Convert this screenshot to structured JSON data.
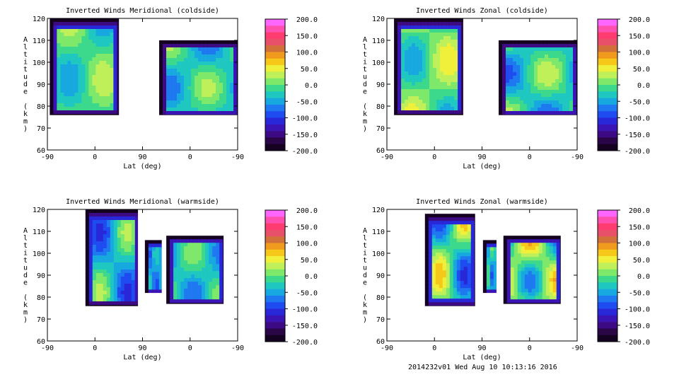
{
  "footer": "2014232v01 Wed Aug 10 10:13:16 2016",
  "colorbar": {
    "labels": [
      "200.0",
      "150.0",
      "100.0",
      "50.0",
      "0.0",
      "-50.0",
      "-100.0",
      "-150.0",
      "-200.0"
    ],
    "colors": [
      "#ff66ff",
      "#ff4fb0",
      "#ff3c70",
      "#e8506a",
      "#d2703a",
      "#f09a1e",
      "#f5c81a",
      "#f0f03a",
      "#bff05a",
      "#7ee86a",
      "#3cd88c",
      "#1ec8c0",
      "#18a8e0",
      "#1e78f0",
      "#1e4cf0",
      "#2828d8",
      "#3a14b4",
      "#3c0a82",
      "#2a0646",
      "#140220"
    ],
    "range": [
      -200,
      200
    ]
  },
  "chart_data": [
    {
      "type": "heatmap",
      "title": "Inverted Winds Meridional (coldside)",
      "xlabel": "Lat (deg)",
      "ylabel": "Altitude (km)",
      "x_ticks": [
        "-90",
        "0",
        "90",
        "0",
        "-90"
      ],
      "y_ticks": [
        "60",
        "70",
        "80",
        "90",
        "100",
        "110",
        "120"
      ],
      "ylim": [
        60,
        120
      ],
      "x_domain": [
        0,
        4
      ],
      "blocks": [
        {
          "x": [
            0.05,
            1.5
          ],
          "y": [
            76,
            120
          ],
          "peak": 40,
          "trough": -60
        },
        {
          "x": [
            2.35,
            4.0
          ],
          "y": [
            76,
            110
          ],
          "peak": 30,
          "trough": -80
        }
      ]
    },
    {
      "type": "heatmap",
      "title": "Inverted Winds Zonal (coldside)",
      "xlabel": "Lat (deg)",
      "ylabel": "Altitude (km)",
      "x_ticks": [
        "-90",
        "0",
        "90",
        "0",
        "-90"
      ],
      "y_ticks": [
        "60",
        "70",
        "80",
        "90",
        "100",
        "110",
        "120"
      ],
      "ylim": [
        60,
        120
      ],
      "x_domain": [
        0,
        4
      ],
      "blocks": [
        {
          "x": [
            0.15,
            1.6
          ],
          "y": [
            76,
            120
          ],
          "peak": 60,
          "trough": -60
        },
        {
          "x": [
            2.35,
            4.0
          ],
          "y": [
            76,
            110
          ],
          "peak": 40,
          "trough": -90
        }
      ]
    },
    {
      "type": "heatmap",
      "title": "Inverted Winds Meridional (warmside)",
      "xlabel": "Lat (deg)",
      "ylabel": "Altitude (km)",
      "x_ticks": [
        "-90",
        "0",
        "90",
        "0",
        "-90"
      ],
      "y_ticks": [
        "60",
        "70",
        "80",
        "90",
        "100",
        "110",
        "120"
      ],
      "ylim": [
        60,
        120
      ],
      "x_domain": [
        0,
        4
      ],
      "blocks": [
        {
          "x": [
            0.8,
            1.9
          ],
          "y": [
            76,
            120
          ],
          "peak": 30,
          "trough": -110
        },
        {
          "x": [
            2.05,
            2.4
          ],
          "y": [
            82,
            106
          ],
          "peak": -20,
          "trough": -90
        },
        {
          "x": [
            2.5,
            3.7
          ],
          "y": [
            77,
            108
          ],
          "peak": 20,
          "trough": -80
        }
      ]
    },
    {
      "type": "heatmap",
      "title": "Inverted Winds Zonal (warmside)",
      "xlabel": "Lat (deg)",
      "ylabel": "Altitude (km)",
      "x_ticks": [
        "-90",
        "0",
        "90",
        "0",
        "-90"
      ],
      "y_ticks": [
        "60",
        "70",
        "80",
        "90",
        "100",
        "110",
        "120"
      ],
      "ylim": [
        60,
        120
      ],
      "x_domain": [
        0,
        4
      ],
      "blocks": [
        {
          "x": [
            0.8,
            1.85
          ],
          "y": [
            76,
            118
          ],
          "peak": 80,
          "trough": -110
        },
        {
          "x": [
            2.02,
            2.3
          ],
          "y": [
            82,
            106
          ],
          "peak": 20,
          "trough": -90
        },
        {
          "x": [
            2.45,
            3.65
          ],
          "y": [
            77,
            108
          ],
          "peak": 90,
          "trough": -80
        }
      ]
    }
  ]
}
